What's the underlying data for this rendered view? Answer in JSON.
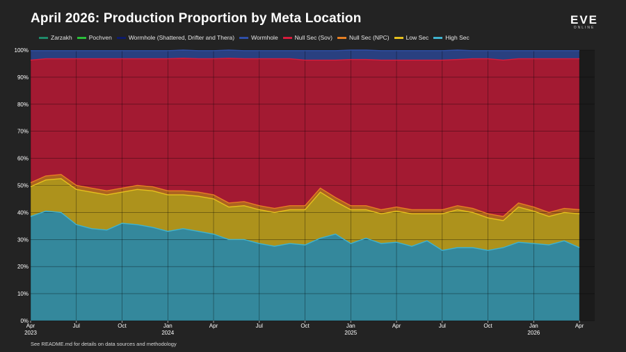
{
  "title": "April 2026: Production Proportion by Meta Location",
  "logo": {
    "main": "EVE",
    "sub": "ONLINE"
  },
  "footnote": "See README.md for details on data sources and methodology",
  "chart_data": {
    "type": "area",
    "stacked": true,
    "normalized": true,
    "title": "April 2026: Production Proportion by Meta Location",
    "xlabel": "",
    "ylabel": "",
    "ylim": [
      0,
      100
    ],
    "xlim": [
      "2023-04",
      "2026-05"
    ],
    "grid": true,
    "legend_position": "top",
    "y_ticks": [
      "0%",
      "10%",
      "20%",
      "30%",
      "40%",
      "50%",
      "60%",
      "70%",
      "80%",
      "90%",
      "100%"
    ],
    "x_ticks": [
      {
        "label": "Apr",
        "year": "2023",
        "month": "2023-04"
      },
      {
        "label": "Jul",
        "year": "",
        "month": "2023-07"
      },
      {
        "label": "Oct",
        "year": "",
        "month": "2023-10"
      },
      {
        "label": "Jan",
        "year": "2024",
        "month": "2024-01"
      },
      {
        "label": "Apr",
        "year": "",
        "month": "2024-04"
      },
      {
        "label": "Jul",
        "year": "",
        "month": "2024-07"
      },
      {
        "label": "Oct",
        "year": "",
        "month": "2024-10"
      },
      {
        "label": "Jan",
        "year": "2025",
        "month": "2025-01"
      },
      {
        "label": "Apr",
        "year": "",
        "month": "2025-04"
      },
      {
        "label": "Jul",
        "year": "",
        "month": "2025-07"
      },
      {
        "label": "Oct",
        "year": "",
        "month": "2025-10"
      },
      {
        "label": "Jan",
        "year": "2026",
        "month": "2026-01"
      },
      {
        "label": "Apr",
        "year": "",
        "month": "2026-04"
      }
    ],
    "x": [
      "2023-04",
      "2023-05",
      "2023-06",
      "2023-07",
      "2023-08",
      "2023-09",
      "2023-10",
      "2023-11",
      "2023-12",
      "2024-01",
      "2024-02",
      "2024-03",
      "2024-04",
      "2024-05",
      "2024-06",
      "2024-07",
      "2024-08",
      "2024-09",
      "2024-10",
      "2024-11",
      "2024-12",
      "2025-01",
      "2025-02",
      "2025-03",
      "2025-04",
      "2025-05",
      "2025-06",
      "2025-07",
      "2025-08",
      "2025-09",
      "2025-10",
      "2025-11",
      "2025-12",
      "2026-01",
      "2026-02",
      "2026-03",
      "2026-04"
    ],
    "series": [
      {
        "name": "High Sec",
        "color": "#3fb3cf",
        "values": [
          38.5,
          40.5,
          40.0,
          35.5,
          34.0,
          33.5,
          36.0,
          35.5,
          34.5,
          33.0,
          34.0,
          33.0,
          32.0,
          30.0,
          30.0,
          28.5,
          27.5,
          28.5,
          28.0,
          30.5,
          32.0,
          28.5,
          30.5,
          28.5,
          29.0,
          27.5,
          29.5,
          26.0,
          27.0,
          27.0,
          26.0,
          27.0,
          29.0,
          28.5,
          28.0,
          29.5,
          27.0
        ]
      },
      {
        "name": "Low Sec",
        "color": "#e6c01d",
        "values": [
          11.0,
          11.5,
          12.5,
          13.0,
          13.5,
          13.0,
          11.5,
          13.0,
          13.5,
          13.5,
          12.5,
          13.0,
          13.0,
          12.0,
          12.5,
          12.5,
          12.5,
          12.5,
          13.0,
          17.0,
          12.0,
          12.5,
          10.5,
          11.0,
          11.5,
          12.0,
          10.0,
          13.5,
          14.0,
          13.0,
          12.0,
          10.0,
          13.0,
          12.0,
          10.5,
          10.5,
          12.5
        ]
      },
      {
        "name": "Null Sec (NPC)",
        "color": "#e67e22",
        "values": [
          1.5,
          1.5,
          1.5,
          1.5,
          1.5,
          1.5,
          1.5,
          1.5,
          1.5,
          1.5,
          1.5,
          1.5,
          1.5,
          1.5,
          1.5,
          1.5,
          1.5,
          1.5,
          1.5,
          1.5,
          1.5,
          1.5,
          1.5,
          1.5,
          1.5,
          1.5,
          1.5,
          1.5,
          1.5,
          1.5,
          1.5,
          1.5,
          1.5,
          1.5,
          1.5,
          1.5,
          1.5
        ]
      },
      {
        "name": "Null Sec (Sov)",
        "color": "#d81b3c",
        "values": [
          45.3,
          43.3,
          42.8,
          46.8,
          47.8,
          48.8,
          47.8,
          46.8,
          47.3,
          48.8,
          49.0,
          49.3,
          50.3,
          53.5,
          52.8,
          54.3,
          55.3,
          54.3,
          53.8,
          47.3,
          50.8,
          54.0,
          54.0,
          55.3,
          54.3,
          55.3,
          55.3,
          55.3,
          54.0,
          55.3,
          57.3,
          57.8,
          53.3,
          54.8,
          56.8,
          55.3,
          55.8
        ]
      },
      {
        "name": "Wormhole",
        "color": "#2f4fa8",
        "values": [
          3.5,
          3.0,
          3.0,
          3.0,
          3.0,
          3.0,
          3.0,
          3.0,
          3.0,
          3.0,
          3.0,
          3.0,
          3.0,
          3.0,
          3.0,
          3.0,
          3.0,
          3.0,
          3.5,
          3.5,
          3.5,
          3.5,
          3.5,
          3.5,
          3.5,
          3.5,
          3.5,
          3.5,
          3.5,
          3.0,
          3.0,
          3.5,
          3.0,
          3.0,
          3.0,
          3.0,
          3.0
        ]
      },
      {
        "name": "Wormhole (Shattered, Drifter and Thera)",
        "color": "#0d1b6b",
        "values": [
          0.1,
          0.1,
          0.1,
          0.1,
          0.1,
          0.1,
          0.1,
          0.1,
          0.1,
          0.1,
          0.1,
          0.1,
          0.1,
          0.1,
          0.1,
          0.1,
          0.1,
          0.1,
          0.1,
          0.1,
          0.1,
          0.1,
          0.1,
          0.1,
          0.1,
          0.1,
          0.1,
          0.1,
          0.1,
          0.1,
          0.1,
          0.1,
          0.1,
          0.1,
          0.1,
          0.1,
          0.1
        ]
      },
      {
        "name": "Pochven",
        "color": "#2bbf3a",
        "values": [
          0.05,
          0.05,
          0.05,
          0.05,
          0.05,
          0.05,
          0.05,
          0.05,
          0.05,
          0.05,
          0.05,
          0.05,
          0.05,
          0.05,
          0.05,
          0.05,
          0.05,
          0.05,
          0.05,
          0.05,
          0.05,
          0.05,
          0.05,
          0.05,
          0.05,
          0.05,
          0.05,
          0.05,
          0.05,
          0.05,
          0.05,
          0.05,
          0.05,
          0.05,
          0.05,
          0.05,
          0.05
        ]
      },
      {
        "name": "Zarzakh",
        "color": "#1f8a6a",
        "values": [
          0.05,
          0.05,
          0.05,
          0.05,
          0.05,
          0.05,
          0.05,
          0.05,
          0.05,
          0.05,
          0.05,
          0.05,
          0.05,
          0.05,
          0.05,
          0.05,
          0.05,
          0.05,
          0.05,
          0.05,
          0.05,
          0.05,
          0.05,
          0.05,
          0.05,
          0.05,
          0.05,
          0.05,
          0.05,
          0.05,
          0.05,
          0.05,
          0.05,
          0.05,
          0.05,
          0.05,
          0.05
        ]
      }
    ],
    "legend_order": [
      "Zarzakh",
      "Pochven",
      "Wormhole (Shattered, Drifter and Thera)",
      "Wormhole",
      "Null Sec (Sov)",
      "Null Sec (NPC)",
      "Low Sec",
      "High Sec"
    ]
  }
}
